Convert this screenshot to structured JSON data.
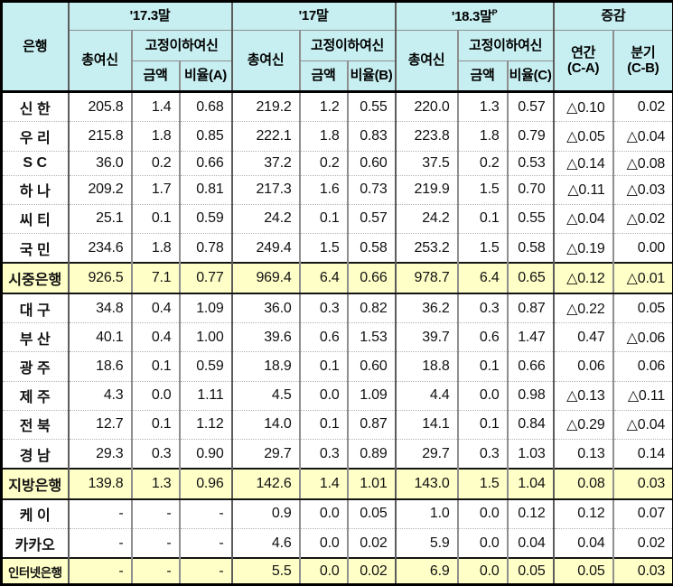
{
  "colors": {
    "header_bg": "#c7eef0",
    "summary_row_bg": "#ffffc8",
    "grid_line": "#8f8f8f",
    "frame": "#000000",
    "text": "#111111"
  },
  "table": {
    "header": {
      "bank": "은행",
      "period1": "'17.3말",
      "period2": "'17말",
      "period3": "'18.3말",
      "period3_sup": "P",
      "change": "증감",
      "total_loans": "총여신",
      "substandard": "고정이하여신",
      "amount": "금액",
      "ratio_a": "비율(A)",
      "ratio_b": "비율(B)",
      "ratio_c": "비율(C)",
      "annual_line1": "연간",
      "annual_line2": "(C-A)",
      "quarter_line1": "분기",
      "quarter_line2": "(C-B)"
    },
    "rows": [
      {
        "name": "신 한",
        "type": "normal",
        "values": [
          "205.8",
          "1.4",
          "0.68",
          "219.2",
          "1.2",
          "0.55",
          "220.0",
          "1.3",
          "0.57",
          "△0.10",
          "0.02"
        ]
      },
      {
        "name": "우 리",
        "type": "normal",
        "values": [
          "215.8",
          "1.8",
          "0.85",
          "222.1",
          "1.8",
          "0.83",
          "223.8",
          "1.8",
          "0.79",
          "△0.05",
          "△0.04"
        ]
      },
      {
        "name": "S C",
        "type": "normal",
        "values": [
          "36.0",
          "0.2",
          "0.66",
          "37.2",
          "0.2",
          "0.60",
          "37.5",
          "0.2",
          "0.53",
          "△0.14",
          "△0.08"
        ]
      },
      {
        "name": "하 나",
        "type": "normal",
        "values": [
          "209.2",
          "1.7",
          "0.81",
          "217.3",
          "1.6",
          "0.73",
          "219.9",
          "1.5",
          "0.70",
          "△0.11",
          "△0.03"
        ]
      },
      {
        "name": "씨 티",
        "type": "normal",
        "values": [
          "25.1",
          "0.1",
          "0.59",
          "24.2",
          "0.1",
          "0.57",
          "24.2",
          "0.1",
          "0.55",
          "△0.04",
          "△0.02"
        ]
      },
      {
        "name": "국 민",
        "type": "normal",
        "values": [
          "234.6",
          "1.8",
          "0.78",
          "249.4",
          "1.5",
          "0.58",
          "253.2",
          "1.5",
          "0.58",
          "△0.19",
          "0.00"
        ]
      },
      {
        "name": "시중은행",
        "type": "summary",
        "values": [
          "926.5",
          "7.1",
          "0.77",
          "969.4",
          "6.4",
          "0.66",
          "978.7",
          "6.4",
          "0.65",
          "△0.12",
          "△0.01"
        ]
      },
      {
        "name": "대 구",
        "type": "normal",
        "values": [
          "34.8",
          "0.4",
          "1.09",
          "36.0",
          "0.3",
          "0.82",
          "36.2",
          "0.3",
          "0.87",
          "△0.22",
          "0.05"
        ]
      },
      {
        "name": "부 산",
        "type": "normal",
        "values": [
          "40.1",
          "0.4",
          "1.00",
          "39.6",
          "0.6",
          "1.53",
          "39.7",
          "0.6",
          "1.47",
          "0.47",
          "△0.06"
        ]
      },
      {
        "name": "광 주",
        "type": "normal",
        "values": [
          "18.6",
          "0.1",
          "0.59",
          "18.9",
          "0.1",
          "0.60",
          "18.8",
          "0.1",
          "0.66",
          "0.06",
          "0.06"
        ]
      },
      {
        "name": "제 주",
        "type": "normal",
        "values": [
          "4.3",
          "0.0",
          "1.11",
          "4.5",
          "0.0",
          "1.09",
          "4.4",
          "0.0",
          "0.98",
          "△0.13",
          "△0.11"
        ]
      },
      {
        "name": "전 북",
        "type": "normal",
        "values": [
          "12.7",
          "0.1",
          "1.12",
          "14.0",
          "0.1",
          "0.87",
          "14.1",
          "0.1",
          "0.84",
          "△0.29",
          "△0.04"
        ]
      },
      {
        "name": "경 남",
        "type": "normal",
        "values": [
          "29.3",
          "0.3",
          "0.90",
          "29.7",
          "0.3",
          "0.89",
          "29.7",
          "0.3",
          "1.03",
          "0.13",
          "0.14"
        ]
      },
      {
        "name": "지방은행",
        "type": "summary",
        "values": [
          "139.8",
          "1.3",
          "0.96",
          "142.6",
          "1.4",
          "1.01",
          "143.0",
          "1.5",
          "1.04",
          "0.08",
          "0.03"
        ]
      },
      {
        "name": "케 이",
        "type": "normal",
        "values": [
          "-",
          "-",
          "-",
          "0.9",
          "0.0",
          "0.05",
          "1.0",
          "0.0",
          "0.12",
          "0.12",
          "0.07"
        ]
      },
      {
        "name": "카카오",
        "type": "normal",
        "values": [
          "-",
          "-",
          "-",
          "4.6",
          "0.0",
          "0.02",
          "5.9",
          "0.0",
          "0.04",
          "0.04",
          "0.02"
        ]
      },
      {
        "name": "인터넷은행",
        "type": "summary",
        "values": [
          "-",
          "-",
          "-",
          "5.5",
          "0.0",
          "0.02",
          "6.9",
          "0.0",
          "0.05",
          "0.05",
          "0.03"
        ]
      }
    ]
  }
}
